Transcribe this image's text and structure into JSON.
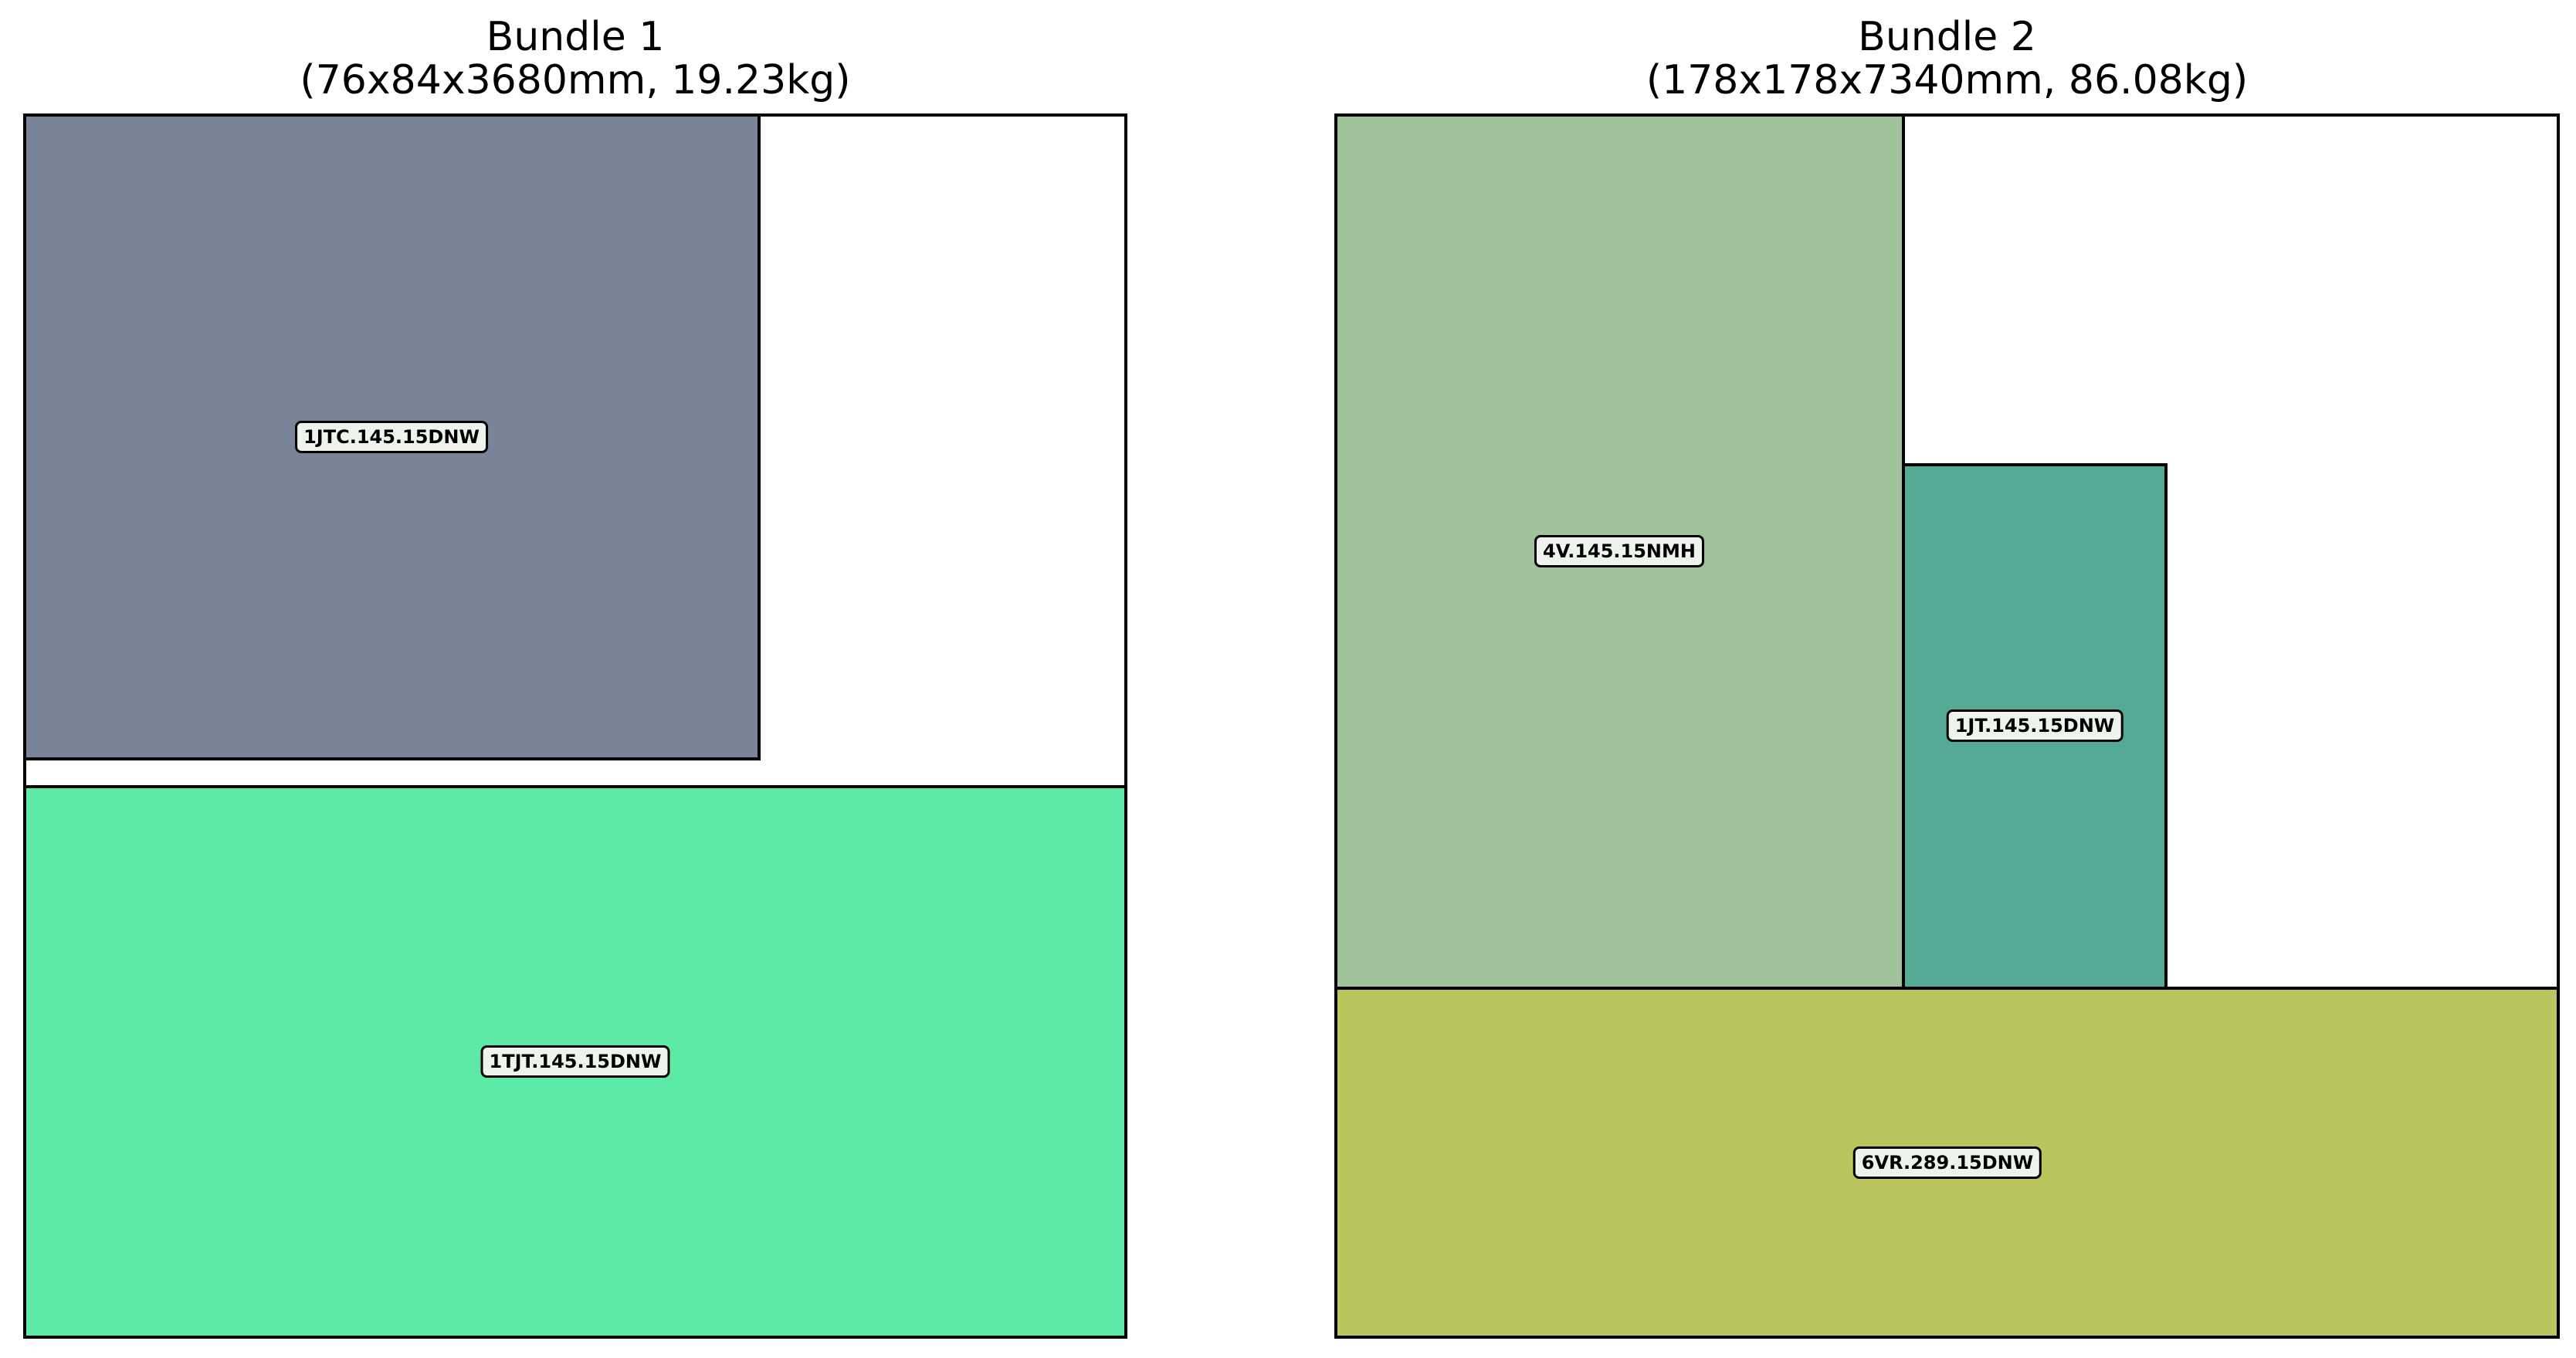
{
  "bundles": [
    {
      "name": "Bundle 1",
      "spec": "(76x84x3680mm, 19.23kg)",
      "pieces": [
        {
          "label": "1JTC.145.15DNW",
          "color": "#7a8499"
        },
        {
          "label": "1TJT.145.15DNW",
          "color": "#5ceaa6"
        }
      ]
    },
    {
      "name": "Bundle 2",
      "spec": "(178x178x7340mm, 86.08kg)",
      "pieces": [
        {
          "label": "4V.145.15NMH",
          "color": "#a0c39b"
        },
        {
          "label": "1JT.145.15DNW",
          "color": "#55aa95"
        },
        {
          "label": "6VR.289.15DNW",
          "color": "#bbc55d"
        }
      ]
    }
  ]
}
